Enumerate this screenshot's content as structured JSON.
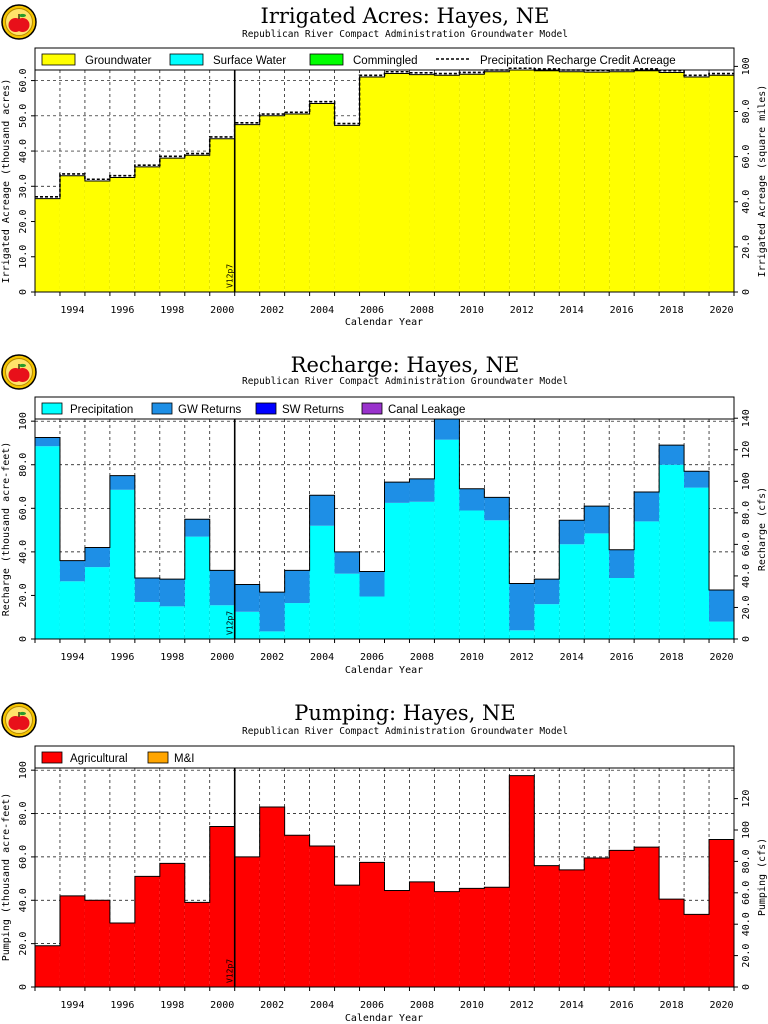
{
  "chart_data": [
    {
      "type": "bar",
      "stacked": true,
      "title": "Irrigated Acres: Hayes, NE",
      "subtitle": "Republican River Compact Administration Groundwater Model",
      "xlabel": "Calendar Year",
      "ylabel": "Irrigated Acreage (thousand acres)",
      "y2label": "Irrigated Acreage (square miles)",
      "ylim": [
        0,
        63
      ],
      "yticks": [
        "0",
        "10.0",
        "20.0",
        "30.0",
        "40.0",
        "50.0",
        "60.0"
      ],
      "y2lim": [
        0,
        98.4
      ],
      "y2ticks": [
        "0",
        "20.0",
        "40.0",
        "60.0",
        "80.0",
        "100"
      ],
      "xlim": [
        1992.5,
        2020.5
      ],
      "xticks": [
        "1994",
        "1996",
        "1998",
        "2000",
        "2002",
        "2004",
        "2006",
        "2008",
        "2010",
        "2012",
        "2014",
        "2016",
        "2018",
        "2020"
      ],
      "grid": true,
      "legend_position": "top",
      "vline": {
        "x": 2000.5,
        "label": "V12p7"
      },
      "categories": [
        1993,
        1994,
        1995,
        1996,
        1997,
        1998,
        1999,
        2000,
        2001,
        2002,
        2003,
        2004,
        2005,
        2006,
        2007,
        2008,
        2009,
        2010,
        2011,
        2012,
        2013,
        2014,
        2015,
        2016,
        2017,
        2018,
        2019,
        2020
      ],
      "series": [
        {
          "name": "Groundwater",
          "color": "#ffff00",
          "values": [
            26.5,
            33.0,
            31.5,
            32.5,
            35.5,
            38.0,
            38.8,
            43.5,
            47.5,
            50.0,
            50.5,
            53.5,
            47.3,
            61.0,
            62.0,
            61.7,
            61.5,
            61.8,
            62.5,
            63.0,
            62.8,
            62.5,
            62.4,
            62.5,
            62.8,
            62.3,
            61.0,
            61.5
          ]
        },
        {
          "name": "Surface Water",
          "color": "#00ffff",
          "values": [
            0,
            0,
            0,
            0,
            0,
            0,
            0,
            0,
            0,
            0,
            0,
            0,
            0,
            0,
            0,
            0,
            0,
            0,
            0,
            0,
            0,
            0,
            0,
            0,
            0,
            0,
            0,
            0
          ]
        },
        {
          "name": "Commingled",
          "color": "#00ff00",
          "values": [
            0,
            0,
            0,
            0,
            0,
            0,
            0,
            0,
            0,
            0,
            0,
            0,
            0,
            0,
            0,
            0,
            0,
            0,
            0,
            0,
            0,
            0,
            0,
            0,
            0,
            0,
            0,
            0
          ]
        },
        {
          "name": "Precipitation Recharge Credit Acreage",
          "style": "dashed",
          "values": [
            27.0,
            33.5,
            32.0,
            33.0,
            36.0,
            38.5,
            39.3,
            44.0,
            48.0,
            50.5,
            51.0,
            54.0,
            47.8,
            61.5,
            62.5,
            62.2,
            62.0,
            62.3,
            63.0,
            63.5,
            63.3,
            63.0,
            62.9,
            63.0,
            63.3,
            62.8,
            61.5,
            62.0
          ]
        }
      ]
    },
    {
      "type": "bar",
      "stacked": true,
      "title": "Recharge: Hayes, NE",
      "subtitle": "Republican River Compact Administration Groundwater Model",
      "xlabel": "Calendar Year",
      "ylabel": "Recharge (thousand acre-feet)",
      "y2label": "Recharge (cfs)",
      "ylim": [
        0,
        101
      ],
      "yticks": [
        "0",
        "20.0",
        "40.0",
        "60.0",
        "80.0",
        "100"
      ],
      "y2lim": [
        0,
        139.5
      ],
      "y2ticks": [
        "0",
        "20.0",
        "40.0",
        "60.0",
        "80.0",
        "100",
        "120",
        "140"
      ],
      "xlim": [
        1992.5,
        2020.5
      ],
      "xticks": [
        "1994",
        "1996",
        "1998",
        "2000",
        "2002",
        "2004",
        "2006",
        "2008",
        "2010",
        "2012",
        "2014",
        "2016",
        "2018",
        "2020"
      ],
      "grid": true,
      "legend_position": "top",
      "vline": {
        "x": 2000.5,
        "label": "V12p7"
      },
      "categories": [
        1993,
        1994,
        1995,
        1996,
        1997,
        1998,
        1999,
        2000,
        2001,
        2002,
        2003,
        2004,
        2005,
        2006,
        2007,
        2008,
        2009,
        2010,
        2011,
        2012,
        2013,
        2014,
        2015,
        2016,
        2017,
        2018,
        2019,
        2020
      ],
      "series": [
        {
          "name": "Precipitation",
          "color": "#00ffff",
          "values": [
            88.5,
            26.5,
            33.0,
            68.5,
            17.0,
            15.0,
            47.0,
            15.5,
            12.5,
            3.5,
            16.5,
            52.0,
            30.0,
            19.5,
            62.5,
            63.0,
            91.5,
            59.0,
            54.5,
            4.0,
            16.0,
            43.5,
            48.5,
            28.0,
            54.0,
            80.0,
            69.5,
            8.0
          ]
        },
        {
          "name": "GW Returns",
          "color": "#1e8fe6",
          "values": [
            4.0,
            9.5,
            9.0,
            6.5,
            11.0,
            12.5,
            8.0,
            16.0,
            12.5,
            18.0,
            15.0,
            14.0,
            10.0,
            11.5,
            9.5,
            10.5,
            9.5,
            10.0,
            10.5,
            21.5,
            11.5,
            11.0,
            12.5,
            13.0,
            13.5,
            9.0,
            7.5,
            14.5
          ]
        },
        {
          "name": "SW Returns",
          "color": "#0000ff",
          "values": [
            0,
            0,
            0,
            0,
            0,
            0,
            0,
            0,
            0,
            0,
            0,
            0,
            0,
            0,
            0,
            0,
            0,
            0,
            0,
            0,
            0,
            0,
            0,
            0,
            0,
            0,
            0,
            0
          ]
        },
        {
          "name": "Canal Leakage",
          "color": "#9932cc",
          "values": [
            0,
            0,
            0,
            0,
            0,
            0,
            0,
            0,
            0,
            0,
            0,
            0,
            0,
            0,
            0,
            0,
            0,
            0,
            0,
            0,
            0,
            0,
            0,
            0,
            0,
            0,
            0,
            0
          ]
        }
      ]
    },
    {
      "type": "bar",
      "stacked": true,
      "title": "Pumping: Hayes, NE",
      "subtitle": "Republican River Compact Administration Groundwater Model",
      "xlabel": "Calendar Year",
      "ylabel": "Pumping (thousand acre-feet)",
      "y2label": "Pumping (cfs)",
      "ylim": [
        0,
        101
      ],
      "yticks": [
        "0",
        "20.0",
        "40.0",
        "60.0",
        "80.0",
        "100"
      ],
      "y2lim": [
        0,
        139.5
      ],
      "y2ticks": [
        "0",
        "20.0",
        "40.0",
        "60.0",
        "80.0",
        "100",
        "120"
      ],
      "xlim": [
        1992.5,
        2020.5
      ],
      "xticks": [
        "1994",
        "1996",
        "1998",
        "2000",
        "2002",
        "2004",
        "2006",
        "2008",
        "2010",
        "2012",
        "2014",
        "2016",
        "2018",
        "2020"
      ],
      "grid": true,
      "legend_position": "top",
      "vline": {
        "x": 2000.5,
        "label": "V12p7"
      },
      "categories": [
        1993,
        1994,
        1995,
        1996,
        1997,
        1998,
        1999,
        2000,
        2001,
        2002,
        2003,
        2004,
        2005,
        2006,
        2007,
        2008,
        2009,
        2010,
        2011,
        2012,
        2013,
        2014,
        2015,
        2016,
        2017,
        2018,
        2019,
        2020
      ],
      "series": [
        {
          "name": "Agricultural",
          "color": "#ff0000",
          "values": [
            19.0,
            42.0,
            40.0,
            29.5,
            51.0,
            57.0,
            39.0,
            74.0,
            60.0,
            83.0,
            70.0,
            65.0,
            47.0,
            57.5,
            44.5,
            48.5,
            44.0,
            45.5,
            46.0,
            97.5,
            56.0,
            54.0,
            59.5,
            63.0,
            64.5,
            40.5,
            33.5,
            68.0
          ]
        },
        {
          "name": "M&I",
          "color": "#ffa500",
          "values": [
            0,
            0,
            0,
            0,
            0,
            0,
            0,
            0,
            0,
            0,
            0,
            0,
            0,
            0,
            0,
            0,
            0,
            0,
            0,
            0,
            0,
            0,
            0,
            0,
            0,
            0,
            0,
            0
          ]
        }
      ]
    }
  ]
}
